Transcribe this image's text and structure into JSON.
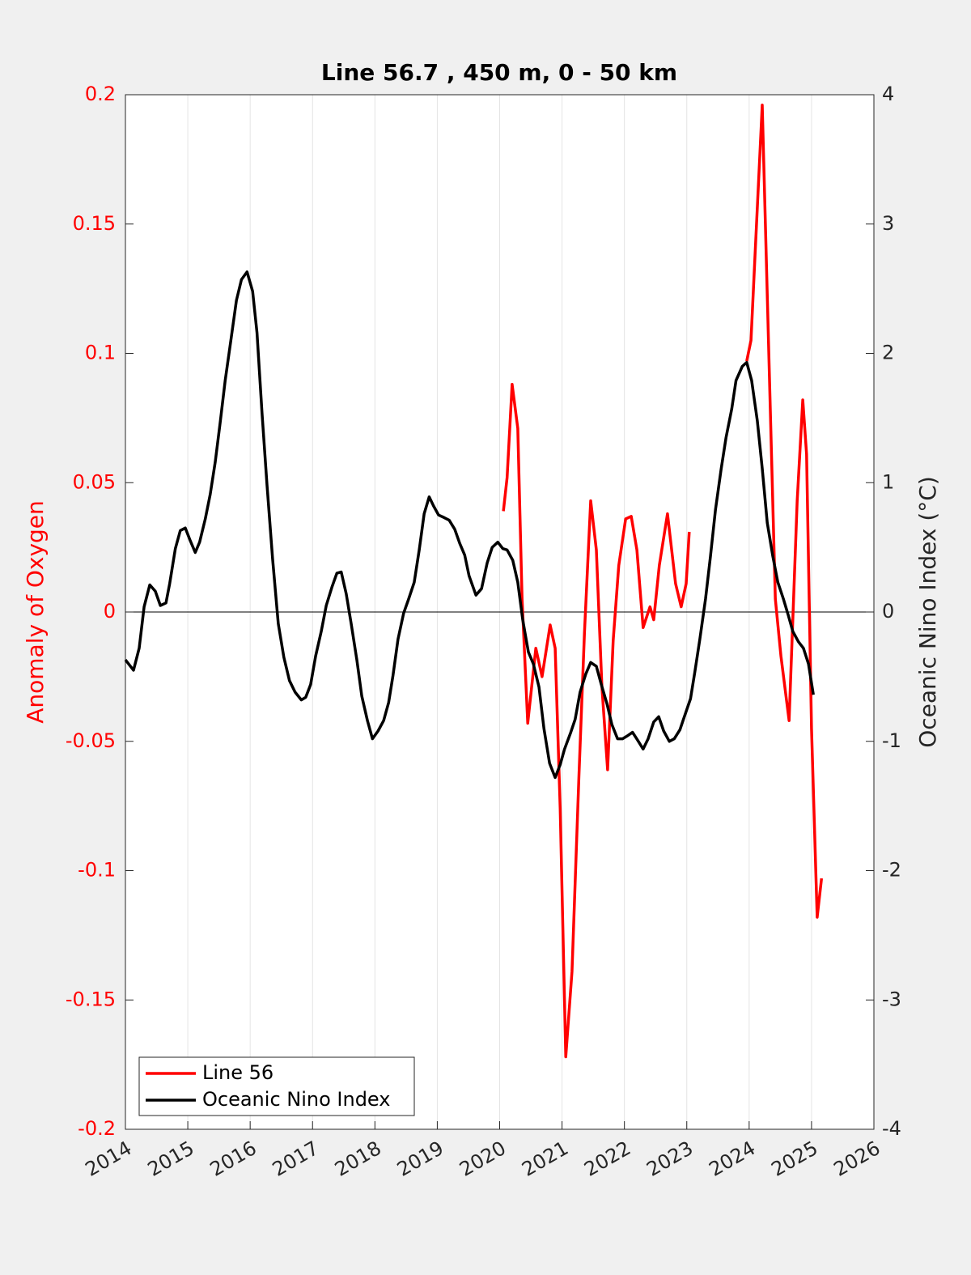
{
  "chart_data": {
    "type": "line",
    "title": "Line 56.7 , 450 m, 0 - 50 km",
    "ylabel": "Anomaly of Oxygen",
    "y2label": "Oceanic Nino Index (°C)",
    "xlim": [
      2014,
      2026
    ],
    "xticks": [
      2014,
      2015,
      2016,
      2017,
      2018,
      2019,
      2020,
      2021,
      2022,
      2023,
      2024,
      2025,
      2026
    ],
    "ylim": [
      -0.2,
      0.2
    ],
    "yticks": [
      -0.2,
      -0.15,
      -0.1,
      -0.05,
      0,
      0.05,
      0.1,
      0.15,
      0.2
    ],
    "y2lim": [
      -4,
      4
    ],
    "y2ticks": [
      -4,
      -3,
      -2,
      -1,
      0,
      1,
      2,
      3,
      4
    ],
    "xgrid": true,
    "zero_line": true,
    "legend": "lower left",
    "ylabel_color": "#ff0000",
    "series": [
      {
        "name": "Line 56",
        "color": "#ff0000",
        "x": [
          2020.06,
          2020.12,
          2020.2,
          2020.29,
          2020.36,
          2020.45,
          2020.58,
          2020.68,
          2020.81,
          2020.89,
          2020.97,
          2021.06,
          2021.16,
          2021.27,
          2021.36,
          2021.46,
          2021.55,
          2021.64,
          2021.73,
          2021.82,
          2021.91,
          2022.02,
          2022.11,
          2022.2,
          2022.3,
          2022.41,
          2022.47,
          2022.56,
          2022.69,
          2022.82,
          2022.91,
          2022.99,
          2023.04,
          2023.5,
          2023.96,
          2024.03,
          2024.09,
          2024.21,
          2024.31,
          2024.42,
          2024.51,
          2024.64,
          2024.77,
          2024.86,
          2024.92,
          2025.0,
          2025.09,
          2025.16
        ],
        "values": [
          0.039,
          0.052,
          0.088,
          0.071,
          0.005,
          -0.043,
          -0.014,
          -0.025,
          -0.005,
          -0.014,
          -0.076,
          -0.172,
          -0.139,
          -0.064,
          -0.008,
          0.043,
          0.024,
          -0.029,
          -0.061,
          -0.011,
          0.018,
          0.036,
          0.037,
          0.024,
          -0.006,
          0.002,
          -0.003,
          0.018,
          0.038,
          0.011,
          0.002,
          0.011,
          0.031,
          null,
          0.097,
          0.105,
          0.136,
          0.196,
          0.105,
          0.005,
          -0.017,
          -0.042,
          0.043,
          0.082,
          0.061,
          -0.045,
          -0.118,
          -0.103
        ]
      },
      {
        "name": "Oceanic Nino Index",
        "color": "#000000",
        "axis": "y2",
        "x": [
          2014.0,
          2014.13,
          2014.22,
          2014.3,
          2014.39,
          2014.48,
          2014.56,
          2014.65,
          2014.71,
          2014.8,
          2014.88,
          2014.96,
          2015.04,
          2015.12,
          2015.19,
          2015.28,
          2015.36,
          2015.44,
          2015.52,
          2015.6,
          2015.69,
          2015.78,
          2015.86,
          2015.95,
          2016.04,
          2016.11,
          2016.19,
          2016.27,
          2016.36,
          2016.45,
          2016.54,
          2016.63,
          2016.72,
          2016.82,
          2016.89,
          2016.97,
          2017.05,
          2017.14,
          2017.22,
          2017.31,
          2017.39,
          2017.46,
          2017.54,
          2017.62,
          2017.71,
          2017.79,
          2017.88,
          2017.96,
          2018.05,
          2018.14,
          2018.22,
          2018.29,
          2018.37,
          2018.46,
          2018.54,
          2018.63,
          2018.71,
          2018.79,
          2018.87,
          2018.94,
          2019.02,
          2019.11,
          2019.19,
          2019.28,
          2019.36,
          2019.44,
          2019.51,
          2019.62,
          2019.71,
          2019.8,
          2019.88,
          2019.97,
          2020.05,
          2020.12,
          2020.21,
          2020.29,
          2020.37,
          2020.46,
          2020.54,
          2020.63,
          2020.71,
          2020.8,
          2020.89,
          2020.97,
          2021.04,
          2021.14,
          2021.21,
          2021.29,
          2021.38,
          2021.46,
          2021.55,
          2021.63,
          2021.72,
          2021.8,
          2021.89,
          2021.97,
          2022.04,
          2022.13,
          2022.21,
          2022.3,
          2022.38,
          2022.47,
          2022.55,
          2022.63,
          2022.72,
          2022.8,
          2022.89,
          2022.96,
          2023.06,
          2023.13,
          2023.21,
          2023.3,
          2023.38,
          2023.46,
          2023.55,
          2023.63,
          2023.72,
          2023.79,
          2023.89,
          2023.96,
          2024.04,
          2024.13,
          2024.21,
          2024.29,
          2024.38,
          2024.46,
          2024.55,
          2024.63,
          2024.7,
          2024.79,
          2024.87,
          2024.95,
          2025.03
        ],
        "values": [
          -0.37,
          -0.45,
          -0.28,
          0.04,
          0.21,
          0.16,
          0.05,
          0.07,
          0.22,
          0.49,
          0.63,
          0.65,
          0.55,
          0.46,
          0.54,
          0.72,
          0.91,
          1.16,
          1.47,
          1.79,
          2.1,
          2.41,
          2.57,
          2.63,
          2.48,
          2.16,
          1.54,
          0.98,
          0.41,
          -0.09,
          -0.35,
          -0.53,
          -0.62,
          -0.68,
          -0.66,
          -0.56,
          -0.34,
          -0.15,
          0.05,
          0.19,
          0.3,
          0.31,
          0.14,
          -0.09,
          -0.37,
          -0.65,
          -0.84,
          -0.98,
          -0.92,
          -0.84,
          -0.7,
          -0.49,
          -0.21,
          -0.01,
          0.1,
          0.23,
          0.48,
          0.76,
          0.89,
          0.82,
          0.75,
          0.73,
          0.71,
          0.64,
          0.53,
          0.44,
          0.28,
          0.13,
          0.18,
          0.38,
          0.5,
          0.54,
          0.49,
          0.48,
          0.4,
          0.23,
          -0.06,
          -0.31,
          -0.4,
          -0.58,
          -0.9,
          -1.17,
          -1.28,
          -1.18,
          -1.06,
          -0.93,
          -0.83,
          -0.62,
          -0.48,
          -0.39,
          -0.42,
          -0.56,
          -0.71,
          -0.87,
          -0.98,
          -0.98,
          -0.96,
          -0.93,
          -0.99,
          -1.06,
          -0.98,
          -0.85,
          -0.81,
          -0.92,
          -1.0,
          -0.98,
          -0.91,
          -0.81,
          -0.67,
          -0.46,
          -0.21,
          0.1,
          0.43,
          0.79,
          1.1,
          1.35,
          1.57,
          1.79,
          1.9,
          1.93,
          1.79,
          1.48,
          1.11,
          0.69,
          0.43,
          0.23,
          0.1,
          -0.03,
          -0.15,
          -0.23,
          -0.28,
          -0.4,
          -0.64
        ]
      }
    ]
  }
}
